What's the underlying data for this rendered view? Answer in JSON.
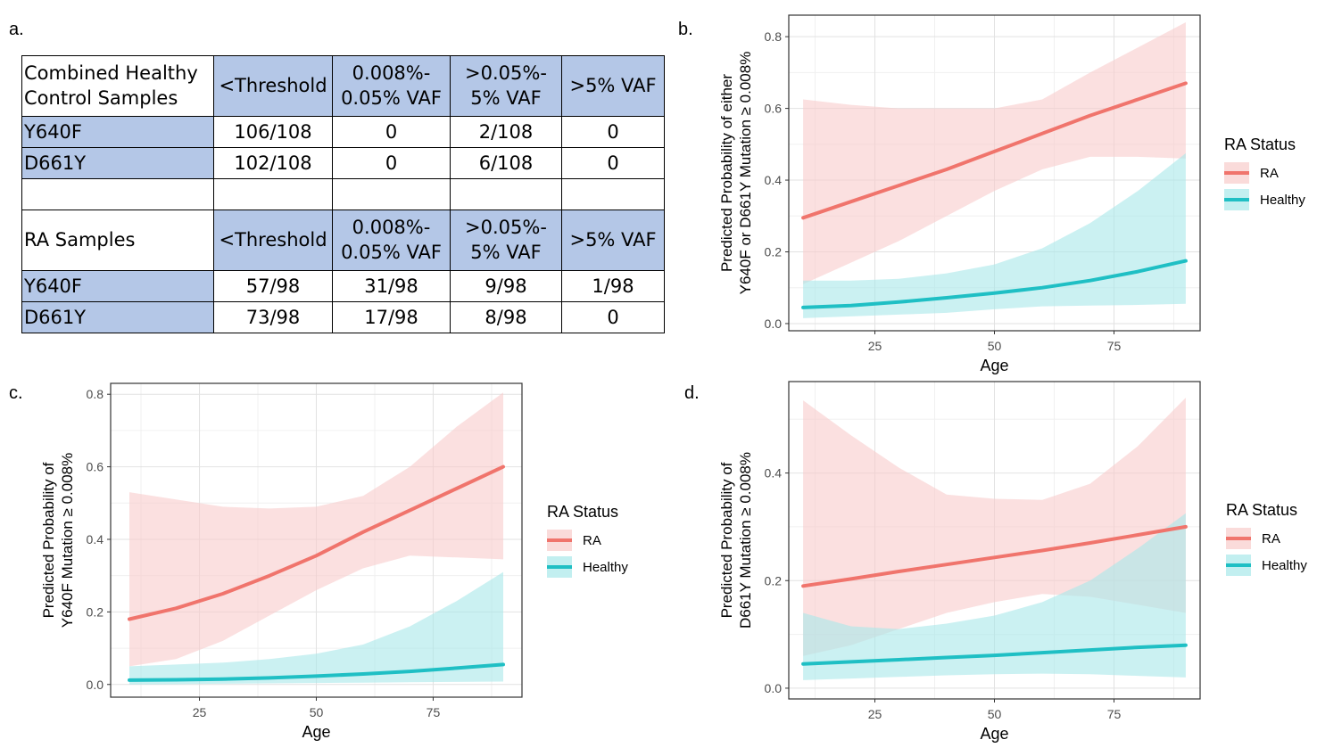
{
  "labels": {
    "a": "a.",
    "b": "b.",
    "c": "c.",
    "d": "d."
  },
  "table": {
    "header": [
      "<Threshold",
      "0.008%-\n0.05% VAF",
      ">0.05%-\n5% VAF",
      ">5% VAF"
    ],
    "healthy_title": "Combined Healthy\nControl Samples",
    "ra_title": "RA Samples",
    "healthy_rows": [
      {
        "label": "Y640F",
        "cells": [
          "106/108",
          "0",
          "2/108",
          "0"
        ]
      },
      {
        "label": "D661Y",
        "cells": [
          "102/108",
          "0",
          "6/108",
          "0"
        ]
      }
    ],
    "ra_rows": [
      {
        "label": "Y640F",
        "cells": [
          "57/98",
          "31/98",
          "9/98",
          "1/98"
        ]
      },
      {
        "label": "D661Y",
        "cells": [
          "73/98",
          "17/98",
          "8/98",
          "0"
        ]
      }
    ]
  },
  "colors": {
    "ra": "#f0746c",
    "ra_band": "#f8cccb",
    "healthy": "#1fbfc4",
    "healthy_band": "#a8e8ea"
  },
  "chart_data": [
    {
      "id": "b",
      "type": "line",
      "ylabel": [
        "Predicted Probability of either",
        "Y640F or D661Y Mutation ≥ 0.008%"
      ],
      "xlabel": "Age",
      "xlim": [
        7,
        93
      ],
      "ylim": [
        -0.02,
        0.86
      ],
      "xticks": [
        25,
        50,
        75
      ],
      "yticks": [
        0.0,
        0.2,
        0.4,
        0.6,
        0.8
      ],
      "ytick_labels": [
        "0.0",
        "0.2",
        "0.4",
        "0.6",
        "0.8"
      ],
      "legend": {
        "title": "RA Status",
        "entries": [
          "RA",
          "Healthy"
        ]
      },
      "x": [
        10,
        20,
        30,
        40,
        50,
        60,
        70,
        80,
        90
      ],
      "series": [
        {
          "name": "RA",
          "values": [
            0.295,
            0.34,
            0.385,
            0.43,
            0.48,
            0.53,
            0.58,
            0.625,
            0.67
          ],
          "lower": [
            0.11,
            0.17,
            0.23,
            0.3,
            0.37,
            0.43,
            0.465,
            0.465,
            0.46
          ],
          "upper": [
            0.625,
            0.61,
            0.6,
            0.6,
            0.6,
            0.625,
            0.7,
            0.77,
            0.84
          ]
        },
        {
          "name": "Healthy",
          "values": [
            0.045,
            0.05,
            0.06,
            0.072,
            0.085,
            0.1,
            0.12,
            0.145,
            0.175
          ],
          "lower": [
            0.015,
            0.02,
            0.025,
            0.03,
            0.04,
            0.048,
            0.05,
            0.052,
            0.055
          ],
          "upper": [
            0.12,
            0.12,
            0.125,
            0.14,
            0.165,
            0.21,
            0.28,
            0.37,
            0.475
          ]
        }
      ]
    },
    {
      "id": "c",
      "type": "line",
      "ylabel": [
        "Predicted Probability of",
        "Y640F Mutation ≥ 0.008%"
      ],
      "xlabel": "Age",
      "xlim": [
        6,
        94
      ],
      "ylim": [
        -0.035,
        0.83
      ],
      "xticks": [
        25,
        50,
        75
      ],
      "yticks": [
        0.0,
        0.2,
        0.4,
        0.6,
        0.8
      ],
      "ytick_labels": [
        "0.0",
        "0.2",
        "0.4",
        "0.6",
        "0.8"
      ],
      "legend": {
        "title": "RA Status",
        "entries": [
          "RA",
          "Healthy"
        ]
      },
      "x": [
        10,
        20,
        30,
        40,
        50,
        60,
        70,
        80,
        90
      ],
      "series": [
        {
          "name": "RA",
          "values": [
            0.18,
            0.21,
            0.25,
            0.3,
            0.355,
            0.42,
            0.48,
            0.54,
            0.6
          ],
          "lower": [
            0.05,
            0.07,
            0.12,
            0.19,
            0.26,
            0.32,
            0.355,
            0.35,
            0.345
          ],
          "upper": [
            0.53,
            0.51,
            0.49,
            0.485,
            0.49,
            0.52,
            0.6,
            0.71,
            0.805
          ]
        },
        {
          "name": "Healthy",
          "values": [
            0.012,
            0.013,
            0.015,
            0.018,
            0.023,
            0.029,
            0.036,
            0.045,
            0.055
          ],
          "lower": [
            0.0,
            0.001,
            0.002,
            0.003,
            0.004,
            0.005,
            0.006,
            0.007,
            0.008
          ],
          "upper": [
            0.05,
            0.055,
            0.06,
            0.07,
            0.085,
            0.11,
            0.16,
            0.23,
            0.31
          ]
        }
      ]
    },
    {
      "id": "d",
      "type": "line",
      "ylabel": [
        "Predicted Probability of",
        "D661Y Mutation ≥ 0.008%"
      ],
      "xlabel": "Age",
      "xlim": [
        7,
        93
      ],
      "ylim": [
        -0.02,
        0.57
      ],
      "xticks": [
        25,
        50,
        75
      ],
      "yticks": [
        0.0,
        0.2,
        0.4
      ],
      "ytick_labels": [
        "0.0",
        "0.2",
        "0.4"
      ],
      "legend": {
        "title": "RA Status",
        "entries": [
          "RA",
          "Healthy"
        ]
      },
      "x": [
        10,
        20,
        30,
        40,
        50,
        60,
        70,
        80,
        90
      ],
      "series": [
        {
          "name": "RA",
          "values": [
            0.19,
            0.203,
            0.217,
            0.23,
            0.243,
            0.256,
            0.27,
            0.285,
            0.3
          ],
          "lower": [
            0.06,
            0.08,
            0.11,
            0.14,
            0.16,
            0.175,
            0.17,
            0.155,
            0.14
          ],
          "upper": [
            0.535,
            0.47,
            0.41,
            0.36,
            0.352,
            0.35,
            0.38,
            0.45,
            0.54
          ]
        },
        {
          "name": "Healthy",
          "values": [
            0.045,
            0.049,
            0.053,
            0.057,
            0.061,
            0.066,
            0.071,
            0.076,
            0.08
          ],
          "lower": [
            0.015,
            0.018,
            0.021,
            0.024,
            0.026,
            0.027,
            0.026,
            0.023,
            0.02
          ],
          "upper": [
            0.14,
            0.115,
            0.11,
            0.12,
            0.135,
            0.16,
            0.2,
            0.26,
            0.325
          ]
        }
      ]
    }
  ]
}
